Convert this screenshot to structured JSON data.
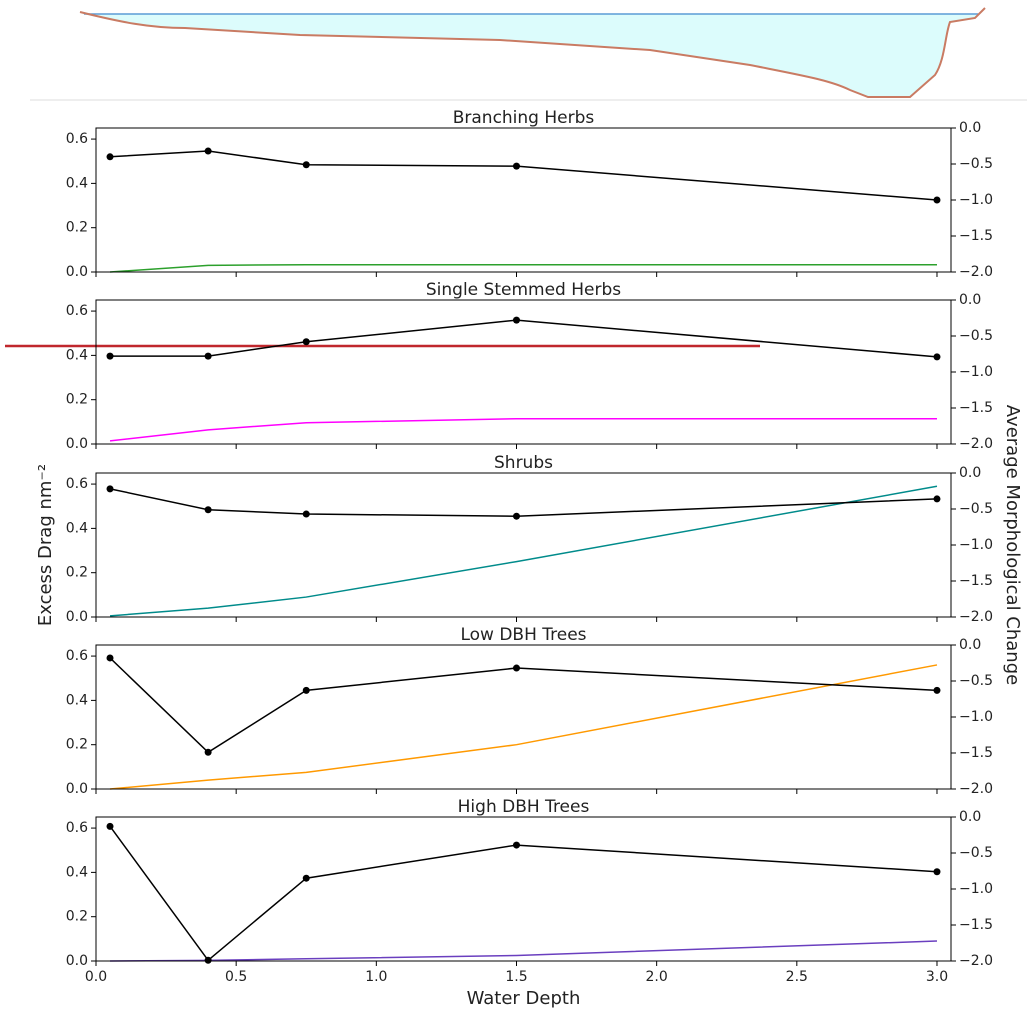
{
  "chart_data": [
    {
      "type": "line",
      "title": "Branching Herbs",
      "x": [
        0.05,
        0.4,
        0.75,
        1.5,
        3.0
      ],
      "series": [
        {
          "color": "#2ca02c",
          "values": [
            0.0,
            0.03,
            0.033,
            0.033,
            0.033
          ]
        },
        {
          "color": "#000000",
          "marker": "o",
          "axis": "y2",
          "values": [
            -0.4,
            -0.32,
            -0.51,
            -0.53,
            -1.0
          ]
        }
      ],
      "xlim": [
        0,
        3.05
      ],
      "ylim": [
        0,
        0.65
      ],
      "y2lim": [
        -2,
        0
      ],
      "yticks": [
        {
          "value": 0,
          "label": "0.0"
        },
        0.2,
        0.4,
        0.6
      ],
      "y2ticks": [
        {
          "value": 0,
          "label": "0.0"
        },
        {
          "value": -0.5,
          "label": "−0.5"
        },
        {
          "value": -1,
          "label": "−1.0"
        },
        {
          "value": -1.5,
          "label": "−1.5"
        },
        {
          "value": -2,
          "label": "−2.0"
        }
      ]
    },
    {
      "type": "line",
      "title": "Single Stemmed Herbs",
      "x": [
        0.05,
        0.4,
        0.75,
        1.5,
        3.0
      ],
      "series": [
        {
          "color": "#ff00ff",
          "values": [
            0.014,
            0.064,
            0.096,
            0.114,
            0.114
          ]
        },
        {
          "color": "#000000",
          "marker": "o",
          "axis": "y2",
          "values": [
            -0.78,
            -0.78,
            -0.58,
            -0.28,
            -0.79
          ]
        }
      ],
      "xlim": [
        0,
        3.05
      ],
      "ylim": [
        0,
        0.65
      ],
      "y2lim": [
        -2,
        0
      ],
      "yticks": [
        {
          "value": 0,
          "label": "0.0"
        },
        0.2,
        0.4,
        0.6
      ],
      "y2ticks": [
        {
          "value": 0,
          "label": "0.0"
        },
        {
          "value": -0.5,
          "label": "−0.5"
        },
        {
          "value": -1,
          "label": "−1.0"
        },
        {
          "value": -1.5,
          "label": "−1.5"
        },
        {
          "value": -2,
          "label": "−2.0"
        }
      ]
    },
    {
      "type": "line",
      "title": "Shrubs",
      "x": [
        0.05,
        0.4,
        0.75,
        1.5,
        3.0
      ],
      "ylabel": "Excess Drag nm⁻²",
      "y2label": "Average Morphological Change",
      "series": [
        {
          "color": "#008b8b",
          "values": [
            0.005,
            0.04,
            0.09,
            0.25,
            0.59
          ]
        },
        {
          "color": "#000000",
          "marker": "o",
          "axis": "y2",
          "values": [
            -0.22,
            -0.51,
            -0.57,
            -0.6,
            -0.36
          ]
        }
      ],
      "xlim": [
        0,
        3.05
      ],
      "ylim": [
        0,
        0.65
      ],
      "y2lim": [
        -2,
        0
      ],
      "yticks": [
        {
          "value": 0,
          "label": "0.0"
        },
        0.2,
        0.4,
        0.6
      ],
      "y2ticks": [
        {
          "value": 0,
          "label": "0.0"
        },
        {
          "value": -0.5,
          "label": "−0.5"
        },
        {
          "value": -1,
          "label": "−1.0"
        },
        {
          "value": -1.5,
          "label": "−1.5"
        },
        {
          "value": -2,
          "label": "−2.0"
        }
      ]
    },
    {
      "type": "line",
      "title": "Low DBH Trees",
      "x": [
        0.05,
        0.4,
        0.75,
        1.5,
        3.0
      ],
      "series": [
        {
          "color": "#ff9900",
          "values": [
            0.0,
            0.04,
            0.075,
            0.2,
            0.56
          ]
        },
        {
          "color": "#000000",
          "marker": "o",
          "axis": "y2",
          "values": [
            -0.18,
            -1.49,
            -0.63,
            -0.32,
            -0.63
          ]
        }
      ],
      "xlim": [
        0,
        3.05
      ],
      "ylim": [
        0,
        0.65
      ],
      "y2lim": [
        -2,
        0
      ],
      "yticks": [
        {
          "value": 0,
          "label": "0.0"
        },
        0.2,
        0.4,
        0.6
      ],
      "y2ticks": [
        {
          "value": 0,
          "label": "0.0"
        },
        {
          "value": -0.5,
          "label": "−0.5"
        },
        {
          "value": -1,
          "label": "−1.0"
        },
        {
          "value": -1.5,
          "label": "−1.5"
        },
        {
          "value": -2,
          "label": "−2.0"
        }
      ]
    },
    {
      "type": "line",
      "title": "High DBH Trees",
      "x": [
        0.05,
        0.4,
        0.75,
        1.5,
        3.0
      ],
      "xlabel": "Water Depth",
      "series": [
        {
          "color": "#6a3fbf",
          "values": [
            0.0,
            0.003,
            0.01,
            0.025,
            0.09
          ]
        },
        {
          "color": "#000000",
          "marker": "o",
          "axis": "y2",
          "values": [
            -0.13,
            -1.99,
            -0.85,
            -0.39,
            -0.76
          ]
        }
      ],
      "xlim": [
        0,
        3.05
      ],
      "ylim": [
        0,
        0.65
      ],
      "y2lim": [
        -2,
        0
      ],
      "xticks": [
        {
          "value": 0,
          "label": "0.0"
        },
        0.5,
        {
          "value": 1,
          "label": "1.0"
        },
        1.5,
        {
          "value": 2,
          "label": "2.0"
        },
        2.5,
        {
          "value": 3,
          "label": "3.0"
        }
      ],
      "yticks": [
        {
          "value": 0,
          "label": "0.0"
        },
        0.2,
        0.4,
        0.6
      ],
      "y2ticks": [
        {
          "value": 0,
          "label": "0.0"
        },
        {
          "value": -0.5,
          "label": "−0.5"
        },
        {
          "value": -1,
          "label": "−1.0"
        },
        {
          "value": -1.5,
          "label": "−1.5"
        },
        {
          "value": -2,
          "label": "−2.0"
        }
      ]
    }
  ]
}
